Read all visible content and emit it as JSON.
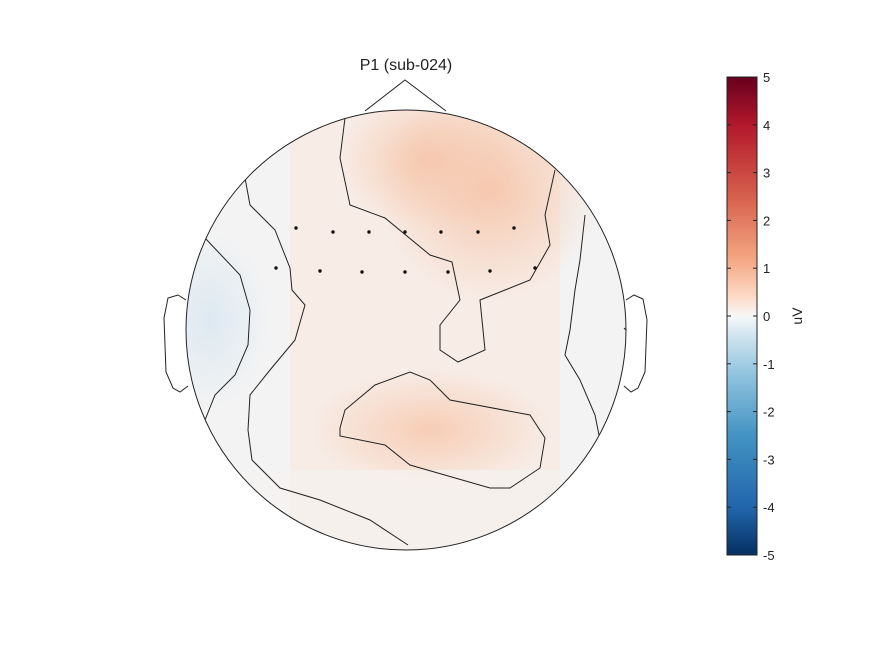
{
  "chart_data": {
    "type": "heatmap",
    "subtype": "scalp-topography",
    "title": "P1 (sub-024)",
    "colorbar": {
      "label": "uV",
      "range": [
        -5,
        5
      ],
      "ticks": [
        5,
        4,
        3,
        2,
        1,
        0,
        -1,
        -2,
        -3,
        -4,
        -5
      ],
      "colormap": "diverging blue-white-red",
      "colors": {
        "min": "#053061",
        "low": "#2166ac",
        "mid_low": "#92c5de",
        "zero": "#f7f7f7",
        "mid_high": "#f4a582",
        "high": "#b2182b",
        "max": "#67001f"
      }
    },
    "electrodes_visible": 14,
    "field_summary": {
      "frontal_midline": 1.4,
      "frontal_right": 1.3,
      "parietal_center": 0.9,
      "central": 0.6,
      "left_temporal": -0.4,
      "right_temporal": 0.1
    }
  }
}
